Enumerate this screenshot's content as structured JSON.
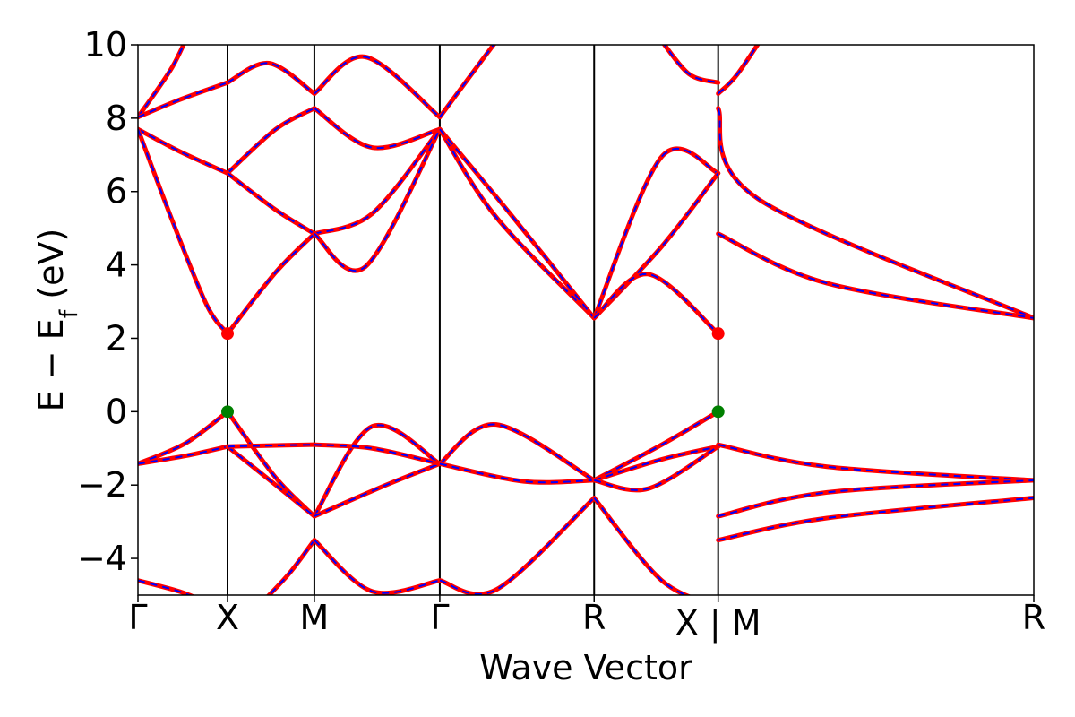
{
  "chart_data": {
    "type": "line",
    "title": "",
    "xlabel": "Wave Vector",
    "ylabel_parts": {
      "main": "E  −  E",
      "sub": "f",
      "unit": " (eV)"
    },
    "ylim": [
      -5,
      10
    ],
    "yticks": [
      -4,
      -2,
      0,
      2,
      4,
      6,
      8,
      10
    ],
    "ytick_labels": [
      "−4",
      "−2",
      "0",
      "2",
      "4",
      "6",
      "8",
      "10"
    ],
    "xlim": [
      0,
      6.5
    ],
    "high_symmetry_points": [
      {
        "label": "Γ",
        "x": 0
      },
      {
        "label": "X",
        "x": 0.65
      },
      {
        "label": "M",
        "x": 1.28
      },
      {
        "label": "Γ",
        "x": 2.19
      },
      {
        "label": "R",
        "x": 3.31
      },
      {
        "label": "X | M",
        "x": 4.21
      },
      {
        "label": "R",
        "x": 6.5
      }
    ],
    "segment_ends": [
      0.65,
      1.28,
      2.19,
      3.31,
      4.21,
      4.21,
      6.5
    ],
    "grid": false,
    "legend": "none",
    "colors": {
      "band_primary": "#ff0000",
      "band_dashed": "#0000ff",
      "cbm_marker": "#ff0000",
      "vbm_marker": "#008000",
      "vline": "#000000"
    },
    "cbm_points": [
      {
        "x": 0.65,
        "y": 2.13
      },
      {
        "x": 4.21,
        "y": 2.13
      }
    ],
    "vbm_points": [
      {
        "x": 0.65,
        "y": 0.0
      },
      {
        "x": 4.21,
        "y": 0.0
      }
    ],
    "bands": [
      {
        "segment": 0,
        "points": [
          [
            0,
            8.03
          ],
          [
            0.25,
            9.4
          ],
          [
            0.4,
            10.6
          ]
        ]
      },
      {
        "segment": 0,
        "points": [
          [
            0,
            8.03
          ],
          [
            0.3,
            8.5
          ],
          [
            0.65,
            8.97
          ]
        ]
      },
      {
        "segment": 0,
        "points": [
          [
            0,
            7.7
          ],
          [
            0.3,
            7.1
          ],
          [
            0.65,
            6.5
          ]
        ]
      },
      {
        "segment": 0,
        "points": [
          [
            0,
            7.7
          ],
          [
            0.25,
            5.2
          ],
          [
            0.5,
            2.9
          ],
          [
            0.65,
            2.13
          ]
        ]
      },
      {
        "segment": 0,
        "points": [
          [
            0,
            -1.42
          ],
          [
            0.35,
            -0.85
          ],
          [
            0.65,
            0.0
          ]
        ]
      },
      {
        "segment": 0,
        "points": [
          [
            0,
            -1.42
          ],
          [
            0.35,
            -1.2
          ],
          [
            0.65,
            -0.95
          ]
        ]
      },
      {
        "segment": 0,
        "points": [
          [
            0,
            -4.6
          ],
          [
            0.3,
            -4.9
          ],
          [
            0.5,
            -5.2
          ]
        ]
      },
      {
        "segment": 1,
        "points": [
          [
            0.65,
            8.97
          ],
          [
            0.95,
            9.5
          ],
          [
            1.28,
            8.67
          ]
        ]
      },
      {
        "segment": 1,
        "points": [
          [
            0.65,
            6.5
          ],
          [
            1.0,
            7.7
          ],
          [
            1.28,
            8.27
          ]
        ]
      },
      {
        "segment": 1,
        "points": [
          [
            0.65,
            6.5
          ],
          [
            1.0,
            5.5
          ],
          [
            1.28,
            4.85
          ]
        ]
      },
      {
        "segment": 1,
        "points": [
          [
            0.65,
            2.13
          ],
          [
            1.0,
            3.8
          ],
          [
            1.28,
            4.85
          ]
        ]
      },
      {
        "segment": 1,
        "points": [
          [
            0.65,
            0.0
          ],
          [
            1.0,
            -1.8
          ],
          [
            1.28,
            -2.85
          ]
        ]
      },
      {
        "segment": 1,
        "points": [
          [
            0.65,
            -0.95
          ],
          [
            1.0,
            -2.0
          ],
          [
            1.28,
            -2.85
          ]
        ]
      },
      {
        "segment": 1,
        "points": [
          [
            0.65,
            -0.95
          ],
          [
            1.0,
            -0.92
          ],
          [
            1.28,
            -0.9
          ]
        ]
      },
      {
        "segment": 1,
        "points": [
          [
            0.9,
            -5.2
          ],
          [
            1.1,
            -4.4
          ],
          [
            1.28,
            -3.5
          ]
        ]
      },
      {
        "segment": 2,
        "points": [
          [
            1.28,
            8.67
          ],
          [
            1.65,
            9.67
          ],
          [
            2.19,
            8.03
          ]
        ]
      },
      {
        "segment": 2,
        "points": [
          [
            1.28,
            8.27
          ],
          [
            1.7,
            7.2
          ],
          [
            2.19,
            7.7
          ]
        ]
      },
      {
        "segment": 2,
        "points": [
          [
            1.28,
            4.85
          ],
          [
            1.7,
            5.4
          ],
          [
            2.19,
            7.7
          ]
        ]
      },
      {
        "segment": 2,
        "points": [
          [
            1.28,
            4.85
          ],
          [
            1.65,
            3.95
          ],
          [
            2.19,
            7.7
          ]
        ]
      },
      {
        "segment": 2,
        "points": [
          [
            1.28,
            -2.85
          ],
          [
            1.7,
            -0.4
          ],
          [
            2.19,
            -1.42
          ]
        ]
      },
      {
        "segment": 2,
        "points": [
          [
            1.28,
            -2.85
          ],
          [
            1.8,
            -2.0
          ],
          [
            2.19,
            -1.42
          ]
        ]
      },
      {
        "segment": 2,
        "points": [
          [
            1.28,
            -0.9
          ],
          [
            1.7,
            -1.0
          ],
          [
            2.19,
            -1.42
          ]
        ]
      },
      {
        "segment": 2,
        "points": [
          [
            1.28,
            -3.5
          ],
          [
            1.7,
            -4.9
          ],
          [
            2.19,
            -4.6
          ]
        ]
      },
      {
        "segment": 3,
        "points": [
          [
            2.19,
            8.03
          ],
          [
            2.5,
            9.6
          ],
          [
            2.7,
            10.6
          ]
        ]
      },
      {
        "segment": 3,
        "points": [
          [
            2.19,
            7.7
          ],
          [
            2.6,
            5.3
          ],
          [
            3.31,
            2.55
          ]
        ]
      },
      {
        "segment": 3,
        "points": [
          [
            2.19,
            7.7
          ],
          [
            2.7,
            5.4
          ],
          [
            3.31,
            2.55
          ]
        ]
      },
      {
        "segment": 3,
        "points": [
          [
            2.19,
            -1.42
          ],
          [
            2.6,
            -0.35
          ],
          [
            3.31,
            -1.87
          ]
        ]
      },
      {
        "segment": 3,
        "points": [
          [
            2.19,
            -1.42
          ],
          [
            2.8,
            -1.9
          ],
          [
            3.31,
            -1.87
          ]
        ]
      },
      {
        "segment": 3,
        "points": [
          [
            2.19,
            -4.6
          ],
          [
            2.6,
            -4.85
          ],
          [
            3.31,
            -2.35
          ]
        ]
      },
      {
        "segment": 4,
        "points": [
          [
            3.31,
            2.55
          ],
          [
            3.8,
            6.95
          ],
          [
            4.21,
            6.5
          ]
        ]
      },
      {
        "segment": 4,
        "points": [
          [
            3.31,
            2.55
          ],
          [
            3.8,
            4.5
          ],
          [
            4.21,
            6.5
          ]
        ]
      },
      {
        "segment": 4,
        "points": [
          [
            3.31,
            2.55
          ],
          [
            3.7,
            3.75
          ],
          [
            4.21,
            2.13
          ]
        ]
      },
      {
        "segment": 4,
        "points": [
          [
            3.31,
            -1.87
          ],
          [
            3.8,
            -0.9
          ],
          [
            4.21,
            0.0
          ]
        ]
      },
      {
        "segment": 4,
        "points": [
          [
            3.31,
            -1.87
          ],
          [
            3.8,
            -1.3
          ],
          [
            4.21,
            -0.95
          ]
        ]
      },
      {
        "segment": 4,
        "points": [
          [
            3.31,
            -1.87
          ],
          [
            3.7,
            -2.1
          ],
          [
            4.21,
            -0.95
          ]
        ]
      },
      {
        "segment": 4,
        "points": [
          [
            3.31,
            -2.35
          ],
          [
            3.8,
            -4.6
          ],
          [
            4.21,
            -5.3
          ]
        ]
      },
      {
        "segment": 4,
        "points": [
          [
            3.8,
            10.1
          ],
          [
            4.0,
            9.2
          ],
          [
            4.21,
            8.97
          ]
        ]
      },
      {
        "segment": 5,
        "points": [
          [
            4.21,
            8.67
          ],
          [
            4.35,
            9.2
          ],
          [
            4.6,
            10.6
          ]
        ]
      },
      {
        "segment": 5,
        "points": [
          [
            4.21,
            8.27
          ],
          [
            4.5,
            5.8
          ],
          [
            6.5,
            2.55
          ]
        ]
      },
      {
        "segment": 5,
        "points": [
          [
            4.21,
            4.85
          ],
          [
            5.0,
            3.5
          ],
          [
            6.5,
            2.55
          ]
        ]
      },
      {
        "segment": 5,
        "points": [
          [
            4.21,
            -0.9
          ],
          [
            5.0,
            -1.5
          ],
          [
            6.5,
            -1.87
          ]
        ]
      },
      {
        "segment": 5,
        "points": [
          [
            4.21,
            -2.85
          ],
          [
            5.0,
            -2.2
          ],
          [
            6.5,
            -1.87
          ]
        ]
      },
      {
        "segment": 5,
        "points": [
          [
            4.21,
            -3.5
          ],
          [
            5.0,
            -2.9
          ],
          [
            6.5,
            -2.35
          ]
        ]
      }
    ]
  }
}
